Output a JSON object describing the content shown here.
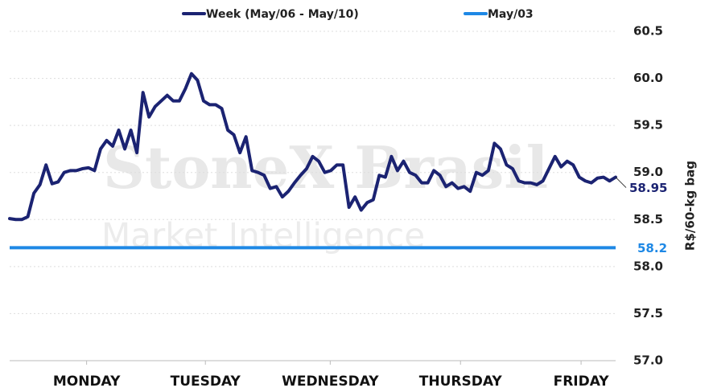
{
  "chart_data": {
    "type": "line",
    "watermark_title": "StoneX Brasil",
    "watermark_subtitle": "Market Intelligence",
    "y_label": "R$/60-kg bag",
    "xlim": [
      0,
      100
    ],
    "xticks": [
      {
        "value": 12.7,
        "label": "MONDAY"
      },
      {
        "value": 32.3,
        "label": "TUESDAY"
      },
      {
        "value": 52.9,
        "label": "WEDNESDAY"
      },
      {
        "value": 74.4,
        "label": "THURSDAY"
      },
      {
        "value": 94.3,
        "label": "FRIDAY"
      }
    ],
    "ylim": [
      57,
      60.5
    ],
    "yticks": [
      {
        "value": 57,
        "label": "57.0"
      },
      57.5,
      {
        "value": 58,
        "label": "58.0"
      },
      58.5,
      {
        "value": 59,
        "label": "59.0"
      },
      59.5,
      {
        "value": 60,
        "label": "60.0"
      },
      60.5
    ],
    "grid": true,
    "series": [
      {
        "name": "Week (May/06 - May/10)",
        "color": "#1b2372",
        "values": [
          58.51,
          58.5,
          58.5,
          58.53,
          58.78,
          58.87,
          59.08,
          58.88,
          58.9,
          59.0,
          59.02,
          59.02,
          59.04,
          59.05,
          59.02,
          59.25,
          59.34,
          59.28,
          59.45,
          59.25,
          59.45,
          59.21,
          59.85,
          59.59,
          59.7,
          59.76,
          59.82,
          59.76,
          59.76,
          59.89,
          60.05,
          59.98,
          59.76,
          59.72,
          59.72,
          59.68,
          59.45,
          59.4,
          59.21,
          59.38,
          59.02,
          59.0,
          58.97,
          58.83,
          58.85,
          58.74,
          58.8,
          58.89,
          58.97,
          59.04,
          59.17,
          59.12,
          59.0,
          59.02,
          59.08,
          59.08,
          58.63,
          58.74,
          58.6,
          58.68,
          58.71,
          58.97,
          58.95,
          59.17,
          59.02,
          59.12,
          59.0,
          58.97,
          58.89,
          58.89,
          59.02,
          58.97,
          58.85,
          58.89,
          58.83,
          58.85,
          58.8,
          59.0,
          58.97,
          59.02,
          59.31,
          59.25,
          59.08,
          59.04,
          58.91,
          58.89,
          58.89,
          58.87,
          58.91,
          59.04,
          59.17,
          59.06,
          59.12,
          59.08,
          58.95,
          58.91,
          58.89,
          58.94,
          58.95,
          58.91,
          58.95
        ]
      },
      {
        "name": "May/03",
        "color": "#1e88e5",
        "values": [
          58.2
        ]
      }
    ]
  }
}
